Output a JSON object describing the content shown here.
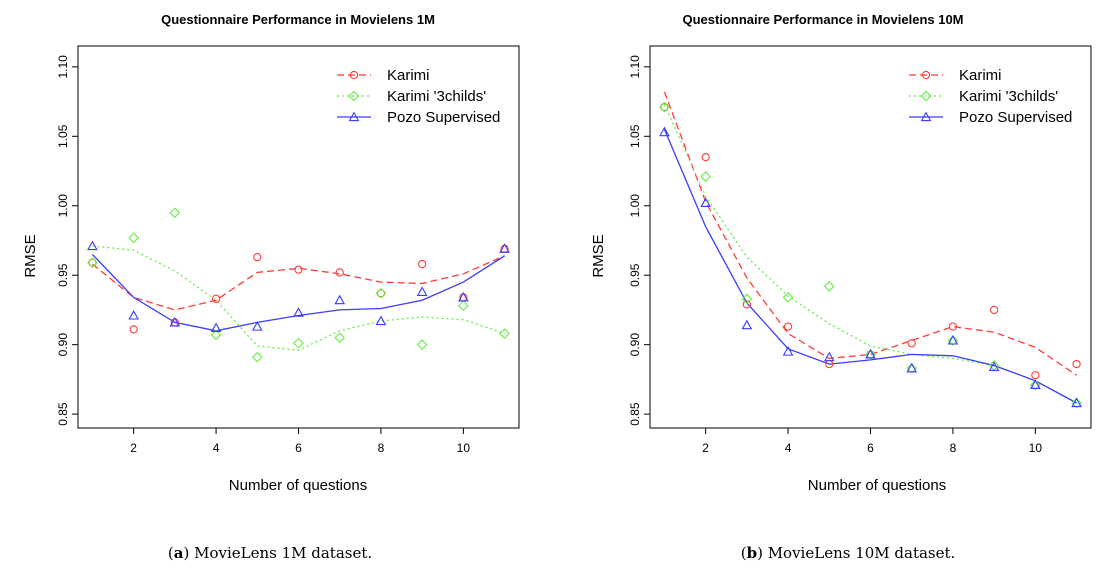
{
  "chart_data": [
    {
      "type": "scatter",
      "title": "Questionnaire Performance in Movielens 1M",
      "xlabel": "Number of questions",
      "ylabel": "RMSE",
      "xlim": [
        0.65,
        11.35
      ],
      "ylim": [
        0.84,
        1.115
      ],
      "x_ticks": [
        2,
        4,
        6,
        8,
        10
      ],
      "y_ticks": [
        0.85,
        0.9,
        0.95,
        1.0,
        1.05,
        1.1
      ],
      "y_tick_labels": [
        "0.85",
        "0.90",
        "0.95",
        "1.00",
        "1.05",
        "1.10"
      ],
      "legend_position": "top-right",
      "caption_label": "a",
      "caption_text": " MovieLens 1M dataset.",
      "series": [
        {
          "name": "Karimi",
          "color": "#ff3b3b",
          "marker": "circle",
          "dash": "dashed",
          "x": [
            1,
            2,
            3,
            4,
            5,
            6,
            7,
            8,
            9,
            10,
            11
          ],
          "points": [
            0.959,
            0.911,
            0.916,
            0.933,
            0.963,
            0.954,
            0.952,
            0.937,
            0.958,
            0.934,
            0.969
          ],
          "smooth": [
            0.958,
            0.934,
            0.925,
            0.932,
            0.952,
            0.955,
            0.951,
            0.945,
            0.944,
            0.951,
            0.964
          ]
        },
        {
          "name": "Karimi '3childs'",
          "color": "#66ee44",
          "marker": "diamond",
          "dash": "dotted",
          "x": [
            1,
            2,
            3,
            4,
            5,
            6,
            7,
            8,
            9,
            10,
            11
          ],
          "points": [
            0.959,
            0.977,
            0.995,
            0.907,
            0.891,
            0.901,
            0.905,
            0.937,
            0.9,
            0.928,
            0.908
          ],
          "smooth": [
            0.971,
            0.968,
            0.953,
            0.932,
            0.899,
            0.896,
            0.91,
            0.917,
            0.92,
            0.918,
            0.908
          ]
        },
        {
          "name": "Pozo Supervised",
          "color": "#3b3bff",
          "marker": "triangle",
          "dash": "solid",
          "x": [
            1,
            2,
            3,
            4,
            5,
            6,
            7,
            8,
            9,
            10,
            11
          ],
          "points": [
            0.971,
            0.921,
            0.916,
            0.912,
            0.913,
            0.923,
            0.932,
            0.917,
            0.938,
            0.934,
            0.969
          ],
          "smooth": [
            0.965,
            0.934,
            0.916,
            0.91,
            0.916,
            0.921,
            0.925,
            0.926,
            0.932,
            0.945,
            0.964
          ]
        }
      ]
    },
    {
      "type": "scatter",
      "title": "Questionnaire Performance in Movielens 10M",
      "xlabel": "Number of questions",
      "ylabel": "RMSE",
      "xlim": [
        0.65,
        11.35
      ],
      "ylim": [
        0.84,
        1.115
      ],
      "x_ticks": [
        2,
        4,
        6,
        8,
        10
      ],
      "y_ticks": [
        0.85,
        0.9,
        0.95,
        1.0,
        1.05,
        1.1
      ],
      "y_tick_labels": [
        "0.85",
        "0.90",
        "0.95",
        "1.00",
        "1.05",
        "1.10"
      ],
      "legend_position": "top-right",
      "caption_label": "b",
      "caption_text": " MovieLens 10M dataset.",
      "series": [
        {
          "name": "Karimi",
          "color": "#ff3b3b",
          "marker": "circle",
          "dash": "dashed",
          "x": [
            1,
            2,
            3,
            4,
            5,
            6,
            7,
            8,
            9,
            10,
            11
          ],
          "points": [
            1.071,
            1.035,
            0.929,
            0.913,
            0.886,
            0.893,
            0.901,
            0.913,
            0.925,
            0.878,
            0.886
          ],
          "smooth": [
            1.082,
            1.003,
            0.948,
            0.908,
            0.89,
            0.893,
            0.903,
            0.913,
            0.909,
            0.898,
            0.878
          ]
        },
        {
          "name": "Karimi '3childs'",
          "color": "#66ee44",
          "marker": "diamond",
          "dash": "dotted",
          "x": [
            1,
            2,
            3,
            4,
            5,
            6,
            7,
            8,
            9,
            10,
            11
          ],
          "points": [
            1.071,
            1.021,
            0.933,
            0.934,
            0.942,
            0.893,
            0.883,
            0.903,
            0.885,
            0.871,
            0.858
          ],
          "smooth": [
            1.073,
            1.007,
            0.963,
            0.935,
            0.915,
            0.899,
            0.893,
            0.89,
            0.885,
            0.874,
            0.858
          ]
        },
        {
          "name": "Pozo Supervised",
          "color": "#3b3bff",
          "marker": "triangle",
          "dash": "solid",
          "x": [
            1,
            2,
            3,
            4,
            5,
            6,
            7,
            8,
            9,
            10,
            11
          ],
          "points": [
            1.053,
            1.002,
            0.914,
            0.895,
            0.891,
            0.893,
            0.883,
            0.903,
            0.884,
            0.871,
            0.858
          ],
          "smooth": [
            1.055,
            0.985,
            0.93,
            0.897,
            0.886,
            0.889,
            0.893,
            0.892,
            0.885,
            0.874,
            0.858
          ]
        }
      ]
    }
  ]
}
